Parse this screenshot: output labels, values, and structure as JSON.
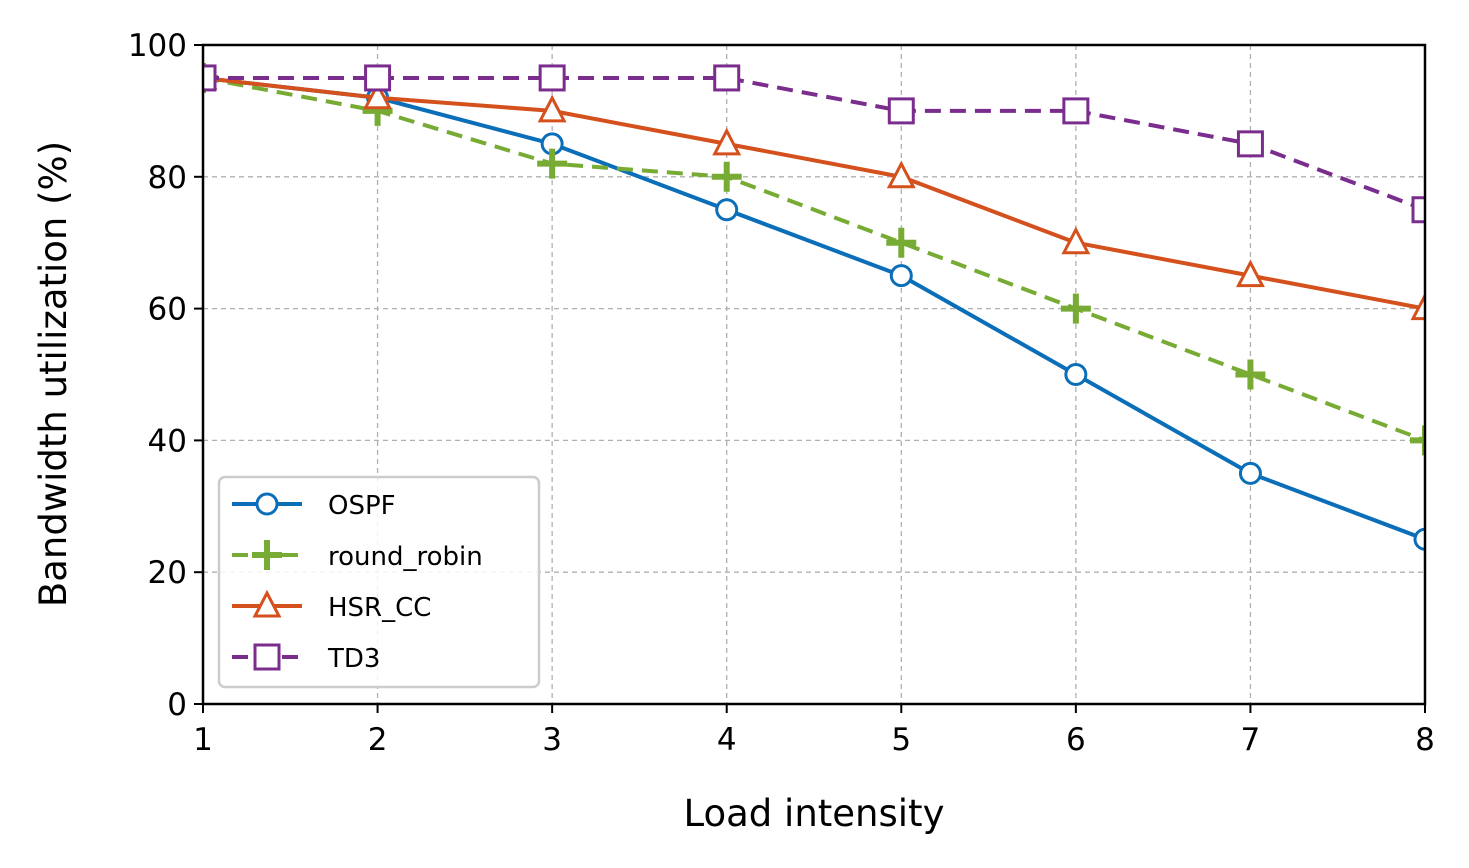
{
  "chart_data": {
    "type": "line",
    "title": "",
    "xlabel": "Load intensity",
    "ylabel": "Bandwidth utilization (%)",
    "x": [
      1,
      2,
      3,
      4,
      5,
      6,
      7,
      8
    ],
    "xlim": [
      1,
      8
    ],
    "ylim": [
      0,
      100
    ],
    "xticks": [
      "1",
      "2",
      "3",
      "4",
      "5",
      "6",
      "7",
      "8"
    ],
    "yticks": [
      "0",
      "20",
      "40",
      "60",
      "80",
      "100"
    ],
    "grid": true,
    "legend_position": "lower-left",
    "series": [
      {
        "name": "OSPF",
        "color": "#0b6eb8",
        "marker": "circle",
        "linestyle": "solid",
        "values": [
          95,
          92,
          85,
          75,
          65,
          50,
          35,
          25
        ]
      },
      {
        "name": "round_robin",
        "color": "#77ab33",
        "marker": "plus",
        "linestyle": "dashed",
        "values": [
          95,
          90,
          82,
          80,
          70,
          60,
          50,
          40
        ]
      },
      {
        "name": "HSR_CC",
        "color": "#d4511e",
        "marker": "triangle",
        "linestyle": "solid",
        "values": [
          95,
          92,
          90,
          85,
          80,
          70,
          65,
          60
        ]
      },
      {
        "name": "TD3",
        "color": "#7b2d8e",
        "marker": "square",
        "linestyle": "dashed",
        "values": [
          95,
          95,
          95,
          95,
          90,
          90,
          85,
          75
        ]
      }
    ]
  }
}
